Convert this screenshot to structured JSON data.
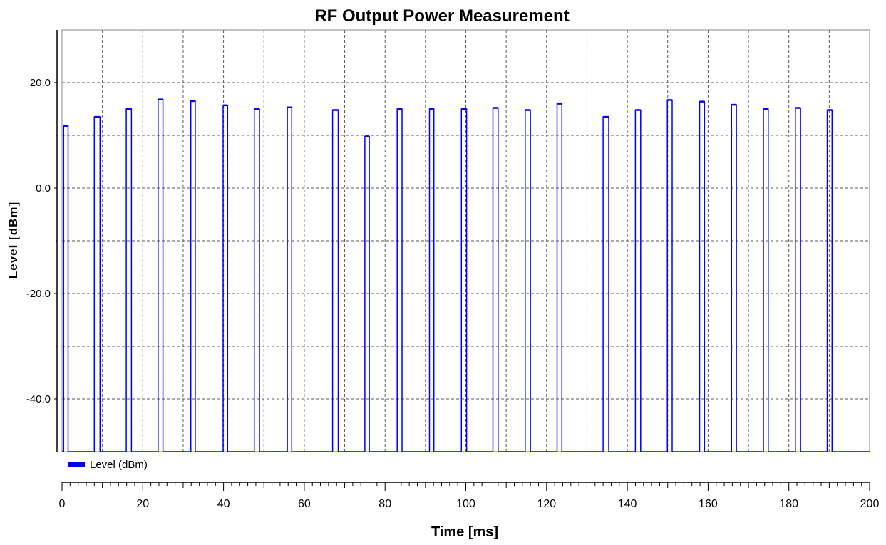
{
  "chart_data": {
    "type": "line",
    "title": "RF Output Power Measurement",
    "xlabel": "Time [ms]",
    "ylabel": "Level [dBm]",
    "xlim": [
      0,
      200
    ],
    "ylim": [
      -50,
      30
    ],
    "x_ticks": [
      0,
      20,
      40,
      60,
      80,
      100,
      120,
      140,
      160,
      180,
      200
    ],
    "x_tick_labels": [
      "0",
      "20",
      "40",
      "60",
      "80",
      "100",
      "120",
      "140",
      "160",
      "180",
      "200"
    ],
    "y_ticks": [
      20,
      0,
      -20,
      -40
    ],
    "y_tick_labels": [
      "20.0",
      "0.0",
      "-20.0",
      "-40.0"
    ],
    "x_grid": [
      10,
      20,
      30,
      40,
      50,
      60,
      70,
      80,
      90,
      100,
      110,
      120,
      130,
      140,
      150,
      160,
      170,
      180,
      190
    ],
    "y_grid": [
      20,
      10,
      0,
      -10,
      -20,
      -30,
      -40
    ],
    "grid": true,
    "legend": {
      "position": "bottom-left",
      "entries": [
        "Level (dBm)"
      ]
    },
    "series": [
      {
        "name": "Level (dBm)",
        "color": "#0000ff",
        "baseline": -50,
        "pulses": [
          {
            "start": 0.4,
            "end": 1.5,
            "level": 11.8
          },
          {
            "start": 8.0,
            "end": 9.4,
            "level": 13.5
          },
          {
            "start": 15.9,
            "end": 17.2,
            "level": 15.0
          },
          {
            "start": 23.8,
            "end": 25.0,
            "level": 16.8
          },
          {
            "start": 31.9,
            "end": 33.0,
            "level": 16.5
          },
          {
            "start": 39.9,
            "end": 41.0,
            "level": 15.7
          },
          {
            "start": 47.6,
            "end": 48.9,
            "level": 15.0
          },
          {
            "start": 55.8,
            "end": 56.9,
            "level": 15.3
          },
          {
            "start": 67.0,
            "end": 68.4,
            "level": 14.8
          },
          {
            "start": 75.0,
            "end": 76.1,
            "level": 9.8
          },
          {
            "start": 83.0,
            "end": 84.2,
            "level": 15.0
          },
          {
            "start": 91.0,
            "end": 92.1,
            "level": 15.0
          },
          {
            "start": 98.9,
            "end": 100.2,
            "level": 15.0
          },
          {
            "start": 106.7,
            "end": 108.0,
            "level": 15.2
          },
          {
            "start": 114.7,
            "end": 116.0,
            "level": 14.8
          },
          {
            "start": 122.6,
            "end": 123.8,
            "level": 16.0
          },
          {
            "start": 134.0,
            "end": 135.4,
            "level": 13.5
          },
          {
            "start": 142.0,
            "end": 143.3,
            "level": 14.8
          },
          {
            "start": 149.9,
            "end": 151.1,
            "level": 16.7
          },
          {
            "start": 157.9,
            "end": 159.1,
            "level": 16.4
          },
          {
            "start": 165.8,
            "end": 167.0,
            "level": 15.8
          },
          {
            "start": 173.7,
            "end": 174.9,
            "level": 15.0
          },
          {
            "start": 181.6,
            "end": 182.9,
            "level": 15.2
          },
          {
            "start": 189.5,
            "end": 190.7,
            "level": 14.8
          }
        ]
      }
    ]
  }
}
